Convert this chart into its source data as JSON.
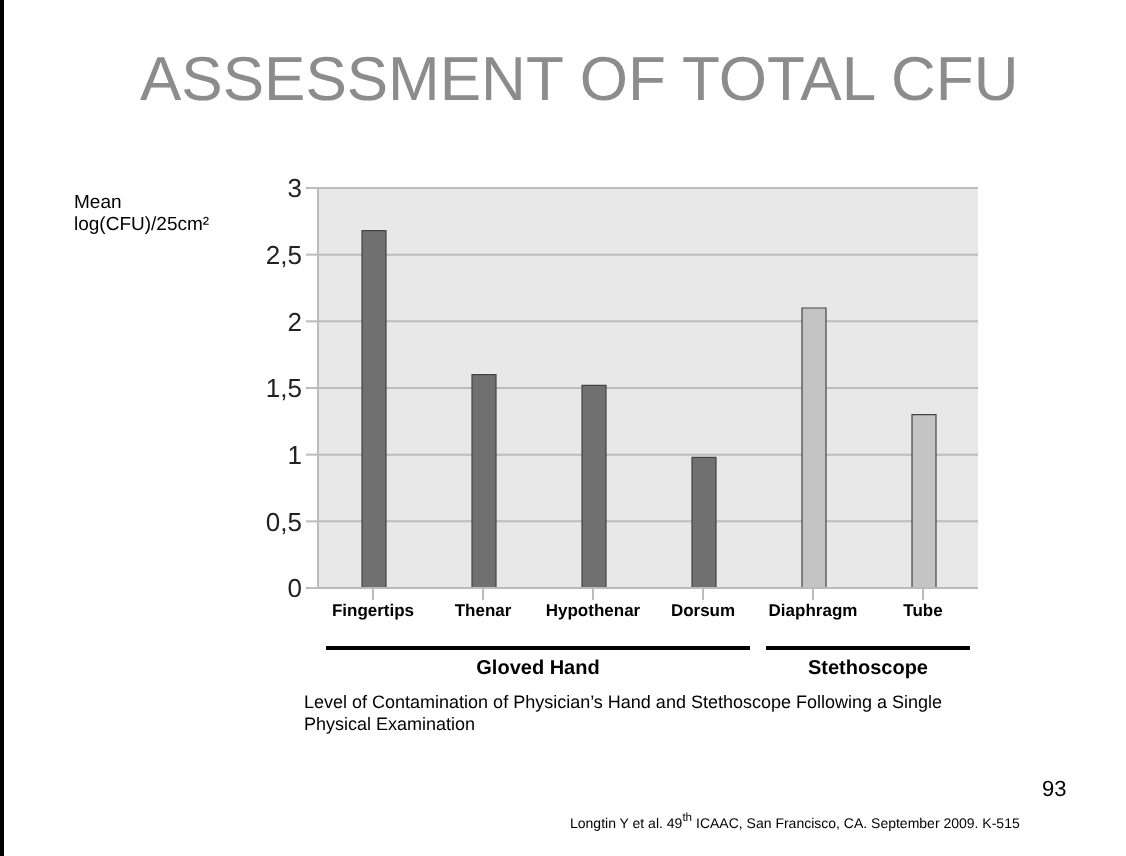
{
  "chart_data": {
    "type": "bar",
    "title": "ASSESSMENT OF TOTAL CFU",
    "ylabel": "Mean log(CFU)/25cm²",
    "categories": [
      "Fingertips",
      "Thenar",
      "Hypothenar",
      "Dorsum",
      "Diaphragm",
      "Tube"
    ],
    "values": [
      2.68,
      1.6,
      1.52,
      0.98,
      2.1,
      1.3
    ],
    "colors": [
      "#707070",
      "#707070",
      "#707070",
      "#707070",
      "#c4c4c4",
      "#c4c4c4"
    ],
    "ylim": [
      0,
      3
    ],
    "yticks": [
      0,
      {
        "value": 0.5,
        "label": "0,5"
      },
      1,
      {
        "value": 1.5,
        "label": "1,5"
      },
      2,
      {
        "value": 2.5,
        "label": "2,5"
      },
      3
    ],
    "grid": "y",
    "legend": false,
    "annotations": [
      "Gloved Hand",
      "Stethoscope",
      "Level of Contamination of Physician’s Hand and Stethoscope Following a Single Physical Examination",
      "93",
      "Longtin Y et al. 49$^{th}$ ICAAC, San Francisco, CA. September 2009. K-515"
    ]
  }
}
